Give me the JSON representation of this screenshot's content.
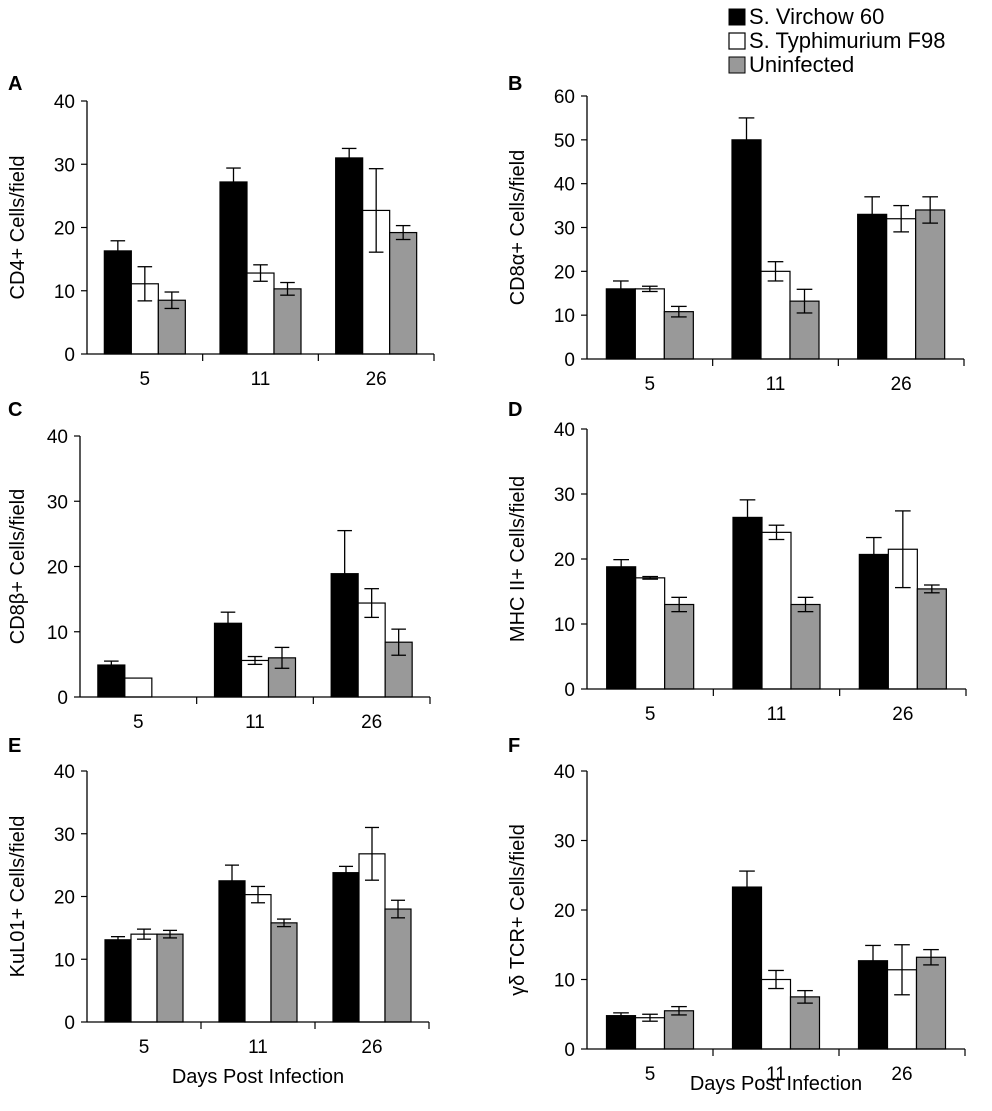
{
  "legend": [
    {
      "label": "S. Virchow 60",
      "color": "#000000"
    },
    {
      "label": "S. Typhimurium F98",
      "color": "#ffffff"
    },
    {
      "label": "Uninfected",
      "color": "#999999"
    }
  ],
  "chart_data": [
    {
      "type": "bar",
      "panel": "A",
      "ylabel": "CD4+ Cells/field",
      "xlabel": "",
      "categories": [
        "5",
        "11",
        "26"
      ],
      "ylim": [
        0,
        40
      ],
      "yticks": [
        0,
        10,
        20,
        30,
        40
      ],
      "series": [
        {
          "name": "S. Virchow 60",
          "values": [
            16.3,
            27.2,
            31.0
          ],
          "errors": [
            1.6,
            2.2,
            1.5
          ]
        },
        {
          "name": "S. Typhimurium F98",
          "values": [
            11.1,
            12.8,
            22.7
          ],
          "errors": [
            2.7,
            1.3,
            6.6
          ]
        },
        {
          "name": "Uninfected",
          "values": [
            8.5,
            10.3,
            19.2
          ],
          "errors": [
            1.3,
            1.0,
            1.1
          ]
        }
      ]
    },
    {
      "type": "bar",
      "panel": "B",
      "ylabel": "CD8α+ Cells/field",
      "xlabel": "",
      "categories": [
        "5",
        "11",
        "26"
      ],
      "ylim": [
        0,
        60
      ],
      "yticks": [
        0,
        10,
        20,
        30,
        40,
        50,
        60
      ],
      "series": [
        {
          "name": "S. Virchow 60",
          "values": [
            16.0,
            50.0,
            33.0
          ],
          "errors": [
            1.8,
            5.0,
            4.0
          ]
        },
        {
          "name": "S. Typhimurium F98",
          "values": [
            16.0,
            20.0,
            32.0
          ],
          "errors": [
            0.6,
            2.2,
            3.0
          ]
        },
        {
          "name": "Uninfected",
          "values": [
            10.8,
            13.2,
            34.0
          ],
          "errors": [
            1.2,
            2.7,
            3.0
          ]
        }
      ]
    },
    {
      "type": "bar",
      "panel": "C",
      "ylabel": "CD8β+ Cells/field",
      "xlabel": "",
      "categories": [
        "5",
        "11",
        "26"
      ],
      "ylim": [
        0,
        40
      ],
      "yticks": [
        0,
        10,
        20,
        30,
        40
      ],
      "series": [
        {
          "name": "S. Virchow 60",
          "values": [
            4.9,
            11.3,
            18.9
          ],
          "errors": [
            0.6,
            1.7,
            6.6
          ]
        },
        {
          "name": "S. Typhimurium F98",
          "values": [
            2.9,
            5.6,
            14.4
          ],
          "errors": [
            0,
            0.6,
            2.2
          ]
        },
        {
          "name": "Uninfected",
          "values": [
            0,
            6.0,
            8.4
          ],
          "errors": [
            0,
            1.6,
            2.0
          ]
        }
      ]
    },
    {
      "type": "bar",
      "panel": "D",
      "ylabel": "MHC II+ Cells/field",
      "xlabel": "",
      "categories": [
        "5",
        "11",
        "26"
      ],
      "ylim": [
        0,
        40
      ],
      "yticks": [
        0,
        10,
        20,
        30,
        40
      ],
      "series": [
        {
          "name": "S. Virchow 60",
          "values": [
            18.8,
            26.4,
            20.7
          ],
          "errors": [
            1.1,
            2.7,
            2.6
          ]
        },
        {
          "name": "S. Typhimurium F98",
          "values": [
            17.1,
            24.1,
            21.5
          ],
          "errors": [
            0.2,
            1.1,
            5.9
          ]
        },
        {
          "name": "Uninfected",
          "values": [
            13.0,
            13.0,
            15.4
          ],
          "errors": [
            1.1,
            1.1,
            0.6
          ]
        }
      ]
    },
    {
      "type": "bar",
      "panel": "E",
      "ylabel": "KuL01+ Cells/field",
      "xlabel": "Days Post Infection",
      "categories": [
        "5",
        "11",
        "26"
      ],
      "ylim": [
        0,
        40
      ],
      "yticks": [
        0,
        10,
        20,
        30,
        40
      ],
      "series": [
        {
          "name": "S. Virchow 60",
          "values": [
            13.1,
            22.5,
            23.8
          ],
          "errors": [
            0.5,
            2.5,
            1.0
          ]
        },
        {
          "name": "S. Typhimurium F98",
          "values": [
            14.0,
            20.3,
            26.8
          ],
          "errors": [
            0.8,
            1.3,
            4.2
          ]
        },
        {
          "name": "Uninfected",
          "values": [
            14.0,
            15.8,
            18.0
          ],
          "errors": [
            0.6,
            0.6,
            1.4
          ]
        }
      ]
    },
    {
      "type": "bar",
      "panel": "F",
      "ylabel": "γδ TCR+ Cells/field",
      "xlabel": "Days Post Infection",
      "categories": [
        "5",
        "11",
        "26"
      ],
      "ylim": [
        0,
        40
      ],
      "yticks": [
        0,
        10,
        20,
        30,
        40
      ],
      "series": [
        {
          "name": "S. Virchow 60",
          "values": [
            4.8,
            23.3,
            12.7
          ],
          "errors": [
            0.4,
            2.3,
            2.2
          ]
        },
        {
          "name": "S. Typhimurium F98",
          "values": [
            4.5,
            10.0,
            11.4
          ],
          "errors": [
            0.5,
            1.3,
            3.6
          ]
        },
        {
          "name": "Uninfected",
          "values": [
            5.5,
            7.5,
            13.2
          ],
          "errors": [
            0.6,
            0.9,
            1.1
          ]
        }
      ]
    }
  ]
}
